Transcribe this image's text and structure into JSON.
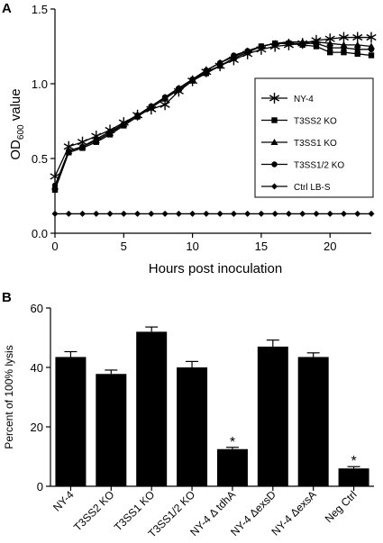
{
  "chart_data": [
    {
      "panel_label": "A",
      "type": "line",
      "title": "",
      "xlabel": "Hours post inoculation",
      "ylabel_main": "OD",
      "ylabel_sub": "600",
      "ylabel_tail": " value",
      "xlim": [
        0,
        23
      ],
      "ylim": [
        0,
        1.5
      ],
      "xticks": [
        0,
        5,
        10,
        15,
        20
      ],
      "yticks": [
        0.0,
        0.5,
        1.0,
        1.5
      ],
      "ytick_labels": [
        "0.0",
        "0.5",
        "1.0",
        "1.5"
      ],
      "legend_position": "right",
      "x": [
        0,
        1,
        2,
        3,
        4,
        5,
        6,
        7,
        8,
        9,
        10,
        11,
        12,
        13,
        14,
        15,
        16,
        17,
        18,
        19,
        20,
        21,
        22,
        23
      ],
      "series": [
        {
          "name": "NY-4",
          "marker": "asterisk",
          "values": [
            0.38,
            0.58,
            0.61,
            0.65,
            0.69,
            0.74,
            0.79,
            0.83,
            0.86,
            0.95,
            1.02,
            1.08,
            1.12,
            1.16,
            1.2,
            1.23,
            1.25,
            1.26,
            1.27,
            1.29,
            1.3,
            1.31,
            1.31,
            1.31
          ]
        },
        {
          "name": "T3SS2 KO",
          "marker": "square",
          "values": [
            0.29,
            0.54,
            0.57,
            0.61,
            0.66,
            0.72,
            0.78,
            0.84,
            0.9,
            0.96,
            1.02,
            1.07,
            1.12,
            1.17,
            1.21,
            1.25,
            1.27,
            1.27,
            1.26,
            1.25,
            1.21,
            1.21,
            1.2,
            1.19
          ]
        },
        {
          "name": "T3SS1 KO",
          "marker": "triangle",
          "values": [
            0.31,
            0.55,
            0.58,
            0.62,
            0.67,
            0.73,
            0.79,
            0.85,
            0.91,
            0.97,
            1.03,
            1.09,
            1.14,
            1.18,
            1.22,
            1.25,
            1.27,
            1.28,
            1.28,
            1.28,
            1.27,
            1.26,
            1.26,
            1.25
          ]
        },
        {
          "name": "T3SS1/2 KO",
          "marker": "circle",
          "values": [
            0.32,
            0.55,
            0.58,
            0.63,
            0.68,
            0.73,
            0.79,
            0.85,
            0.91,
            0.97,
            1.03,
            1.09,
            1.14,
            1.19,
            1.22,
            1.25,
            1.27,
            1.27,
            1.27,
            1.27,
            1.24,
            1.24,
            1.23,
            1.23
          ]
        },
        {
          "name": "Ctrl LB-S",
          "marker": "diamond",
          "values": [
            0.13,
            0.13,
            0.13,
            0.13,
            0.13,
            0.13,
            0.13,
            0.13,
            0.13,
            0.13,
            0.13,
            0.13,
            0.13,
            0.13,
            0.13,
            0.13,
            0.13,
            0.13,
            0.13,
            0.13,
            0.13,
            0.13,
            0.13,
            0.13
          ]
        }
      ]
    },
    {
      "panel_label": "B",
      "type": "bar",
      "title": "",
      "ylabel": "Percent of 100% lysis",
      "xlabel": "",
      "ylim": [
        0,
        60
      ],
      "yticks": [
        0,
        20,
        40,
        60
      ],
      "categories": [
        {
          "pre": "NY-4",
          "delta": "",
          "post": ""
        },
        {
          "pre": "T3SS2 KO",
          "delta": "",
          "post": ""
        },
        {
          "pre": "T3SS1 KO",
          "delta": "",
          "post": ""
        },
        {
          "pre": "T3SS1/2 KO",
          "delta": "",
          "post": ""
        },
        {
          "pre": "NY-4 ",
          "delta": "Δ",
          "post": " tdhA"
        },
        {
          "pre": "NY-4 ",
          "delta": "Δ",
          "post": "exsD"
        },
        {
          "pre": "NY-4 ",
          "delta": "Δ",
          "post": "exsA"
        },
        {
          "pre": "Neg Ctrl",
          "delta": "",
          "post": ""
        }
      ],
      "values": [
        43.5,
        37.8,
        52.0,
        40.0,
        12.5,
        47.0,
        43.5,
        6.0
      ],
      "errors": [
        1.8,
        1.3,
        1.6,
        2.0,
        0.6,
        2.2,
        1.4,
        0.6
      ],
      "annotations": [
        "",
        "",
        "",
        "",
        "*",
        "",
        "",
        "*"
      ]
    }
  ]
}
